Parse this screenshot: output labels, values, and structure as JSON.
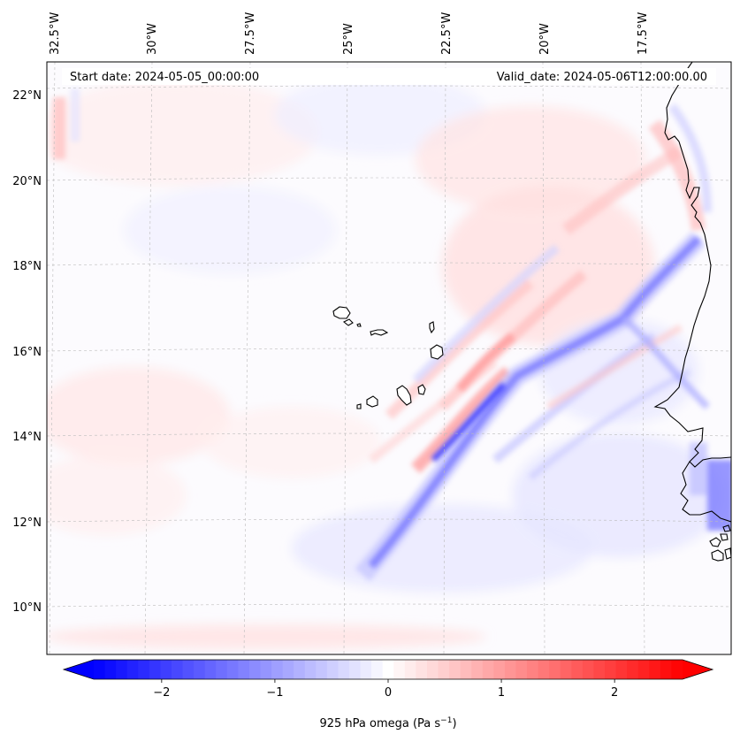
{
  "figure": {
    "header": {
      "start_date": "Start date: 2024-05-05_00:00:00",
      "valid_date": "Valid_date: 2024-05-06T12:00:00.00"
    },
    "latitude_labels": [
      "22°N",
      "20°N",
      "18°N",
      "16°N",
      "14°N",
      "12°N",
      "10°N"
    ],
    "longitude_labels": [
      "32.5°W",
      "30°W",
      "27.5°W",
      "25°W",
      "22.5°W",
      "20°W",
      "17.5°W"
    ],
    "colorbar": {
      "label_main": "925 hPa omega (Pa s",
      "label_exponent": "−1",
      "label_close": ")",
      "ticks": [
        "−2",
        "−1",
        "0",
        "1",
        "2"
      ],
      "tick_values": [
        -2,
        -1,
        0,
        1,
        2
      ],
      "vmin": -2.6,
      "vmax": 2.6,
      "levels": 53,
      "colormap": "bwr",
      "low_color": "#0000ff",
      "mid_color": "#ffffff",
      "high_color": "#ff0000"
    },
    "colors": {
      "coastline": "#000000",
      "gridline": "#bbbbbb",
      "frame": "#000000"
    }
  }
}
